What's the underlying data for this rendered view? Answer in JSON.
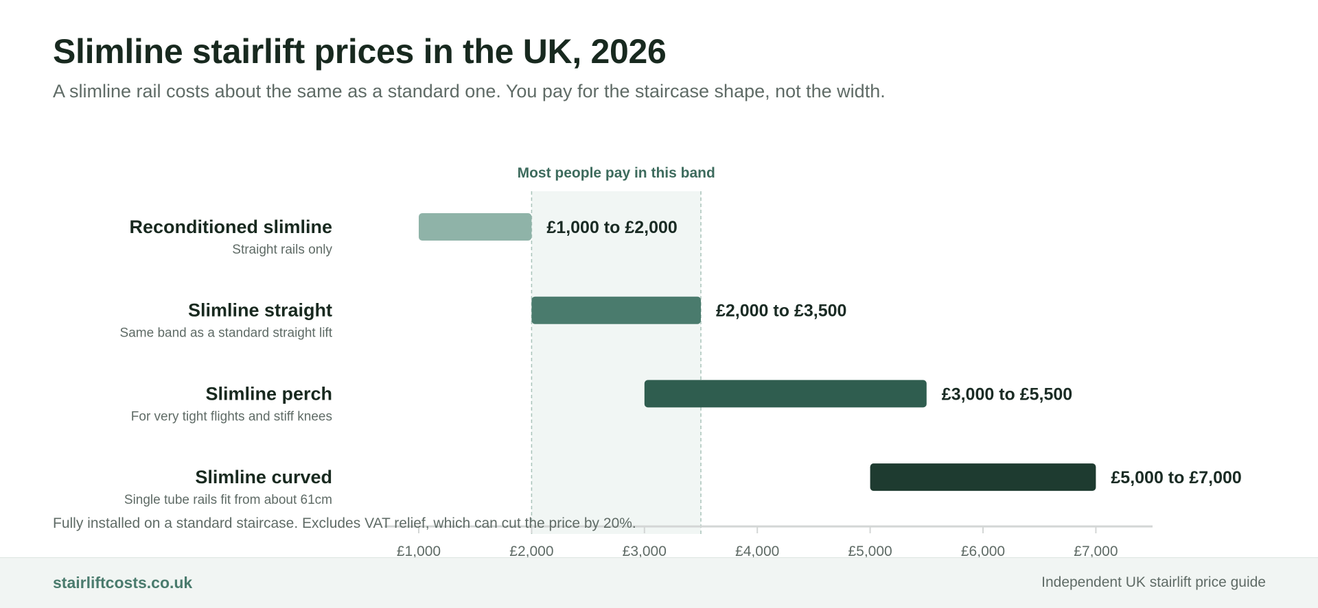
{
  "header": {
    "title": "Slimline stairlift prices in the UK, 2026",
    "subtitle": "A slimline rail costs about the same as a standard one. You pay for the staircase shape, not the width."
  },
  "chart_data": {
    "type": "bar",
    "orientation": "horizontal",
    "range_bars": true,
    "band": {
      "label": "Most people pay in this band",
      "from": 2000,
      "to": 3500
    },
    "xlim": [
      1000,
      7500
    ],
    "x_ticks": [
      1000,
      2000,
      3000,
      4000,
      5000,
      6000,
      7000
    ],
    "x_tick_labels": [
      "£1,000",
      "£2,000",
      "£3,000",
      "£4,000",
      "£5,000",
      "£6,000",
      "£7,000"
    ],
    "rows": [
      {
        "name": "Reconditioned slimline",
        "note": "Straight rails only",
        "low": 1000,
        "high": 2000,
        "label": "£1,000 to £2,000",
        "color": "#8fb3a8"
      },
      {
        "name": "Slimline straight",
        "note": "Same band as a standard straight lift",
        "low": 2000,
        "high": 3500,
        "label": "£2,000 to £3,500",
        "color": "#4a7b6d"
      },
      {
        "name": "Slimline perch",
        "note": "For very tight flights and stiff knees",
        "low": 3000,
        "high": 5500,
        "label": "£3,000 to £5,500",
        "color": "#2f5d4f"
      },
      {
        "name": "Slimline curved",
        "note": "Single tube rails fit from about 61cm",
        "low": 5000,
        "high": 7000,
        "label": "£5,000 to £7,000",
        "color": "#1e3b30"
      }
    ],
    "colors": {
      "band_fill": "#f1f6f4",
      "band_line": "#a9c3ba",
      "band_label": "#3d6b5d",
      "axis": "#d3d6d5",
      "tick_text": "#5f6b66"
    }
  },
  "footnote": "Fully installed on a standard staircase. Excludes VAT relief, which can cut the price by 20%.",
  "footer": {
    "site": "stairliftcosts.co.uk",
    "tagline": "Independent UK stairlift price guide"
  }
}
